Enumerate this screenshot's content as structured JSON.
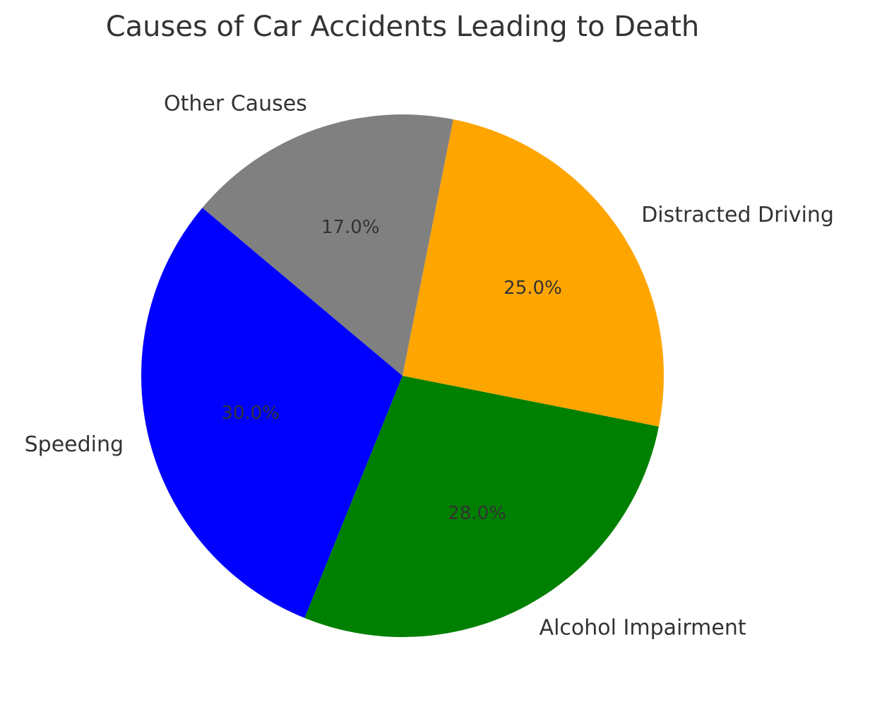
{
  "chart_data": {
    "type": "pie",
    "title": "Causes of Car Accidents Leading to Death",
    "categories": [
      "Speeding",
      "Alcohol Impairment",
      "Distracted Driving",
      "Other Causes"
    ],
    "values": [
      30,
      28,
      25,
      17
    ],
    "value_labels": [
      "30.0%",
      "28.0%",
      "25.0%",
      "17.0%"
    ],
    "colors": [
      "blue",
      "green",
      "orange",
      "gray"
    ]
  }
}
